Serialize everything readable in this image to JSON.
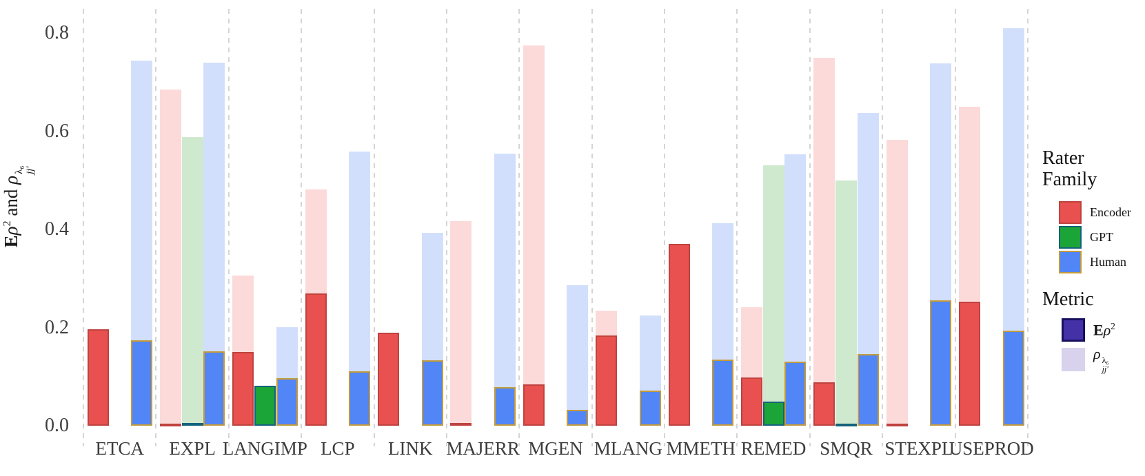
{
  "y_axis": {
    "ticks": [
      "0.0",
      "0.2",
      "0.4",
      "0.6",
      "0.8"
    ],
    "title": {
      "bold_e": "E",
      "rho1": "ρ",
      "sup2": "2",
      "joiner": " and ",
      "rho2": "ρ",
      "sup_lambda": "λ₆",
      "sub_jj": "jj′"
    }
  },
  "legend": {
    "rater_family": {
      "title_line1": "Rater",
      "title_line2": "Family",
      "items": [
        {
          "label": "Encoder",
          "fill": "#e8514f",
          "border": "#bf423f"
        },
        {
          "label": "GPT",
          "fill": "#1ba437",
          "border": "#14627c"
        },
        {
          "label": "Human",
          "fill": "#5286f7",
          "border": "#c39b3c"
        }
      ]
    },
    "metric": {
      "title": "Metric",
      "items": [
        {
          "label_bold": "E",
          "label_rho": "ρ",
          "label_sup": "2",
          "fill": "#4431a7",
          "border": "#180f5e"
        },
        {
          "label_rho": "ρ",
          "label_sup": "λ₆",
          "label_sub": "jj′",
          "fill": "#d8d2ed",
          "border": null
        }
      ]
    }
  },
  "chart_data": {
    "type": "bar",
    "title": "",
    "xlabel": "",
    "ylabel": "Eρ2 and ρ_jj′^λ6",
    "ylim": [
      0,
      0.82
    ],
    "grid": "vertical-dashed",
    "legend_position": "right",
    "categories": [
      "ETCA",
      "EXPL",
      "LANGIMP",
      "LCP",
      "LINK",
      "MAJERR",
      "MGEN",
      "MLANG",
      "MMETH",
      "REMED",
      "SMQR",
      "STEXPL",
      "USEPROD"
    ],
    "metrics": [
      "E_rho2",
      "rho_lambda6"
    ],
    "series": [
      {
        "name": "Encoder",
        "metric": "rho_lambda6",
        "values": [
          null,
          0.685,
          0.306,
          0.482,
          null,
          0.417,
          0.775,
          0.234,
          null,
          0.242,
          0.75,
          0.583,
          0.65
        ]
      },
      {
        "name": "Encoder",
        "metric": "E_rho2",
        "values": [
          0.197,
          0.004,
          0.15,
          0.27,
          0.189,
          0.006,
          0.084,
          0.184,
          0.371,
          0.098,
          0.088,
          0.004,
          0.252
        ]
      },
      {
        "name": "GPT",
        "metric": "rho_lambda6",
        "values": [
          null,
          0.588,
          null,
          null,
          null,
          null,
          null,
          null,
          null,
          0.53,
          0.5,
          null,
          null
        ]
      },
      {
        "name": "GPT",
        "metric": "E_rho2",
        "values": [
          null,
          0.006,
          0.082,
          null,
          null,
          null,
          null,
          null,
          null,
          0.049,
          0.004,
          null,
          null
        ]
      },
      {
        "name": "Human",
        "metric": "rho_lambda6",
        "values": [
          0.744,
          0.74,
          0.201,
          0.558,
          0.393,
          0.555,
          0.287,
          0.224,
          0.412,
          0.553,
          0.637,
          0.738,
          0.81
        ]
      },
      {
        "name": "Human",
        "metric": "E_rho2",
        "values": [
          0.174,
          0.151,
          0.097,
          0.111,
          0.134,
          0.078,
          0.032,
          0.071,
          0.135,
          0.131,
          0.146,
          0.256,
          0.194
        ]
      }
    ],
    "colors": {
      "Encoder": {
        "solid": "#e8514f",
        "border": "#bf423f",
        "light": "#fbdad9"
      },
      "GPT": {
        "solid": "#1ba437",
        "border": "#14627c",
        "light": "#cfe9ce"
      },
      "Human": {
        "solid": "#5286f7",
        "border": "#c39b3c",
        "light": "#d2dffc"
      },
      "gridline": "#d5d5d5",
      "axis_text": "#3c3c3c"
    }
  }
}
